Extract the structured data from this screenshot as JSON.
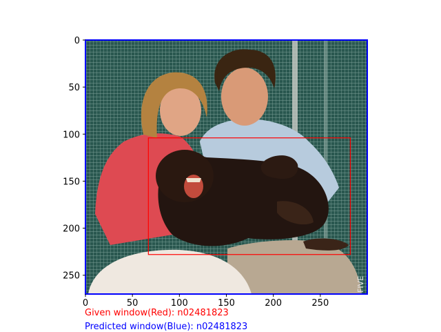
{
  "image_plot": {
    "xlim": [
      0,
      300
    ],
    "ylim": [
      0,
      270
    ],
    "x_ticks": [
      0,
      50,
      100,
      150,
      200,
      250
    ],
    "y_ticks": [
      0,
      50,
      100,
      150,
      200,
      250
    ],
    "y_axis_inverted": true,
    "photo_watermark": "FIVE"
  },
  "windows": {
    "given": {
      "color": "#ff0000",
      "x_range": [
        67,
        282
      ],
      "y_range": [
        104,
        228
      ]
    },
    "predicted": {
      "color": "#0000ff",
      "x_range": [
        0,
        300
      ],
      "y_range": [
        0,
        270
      ]
    }
  },
  "captions": {
    "given": "Given window(Red): n02481823",
    "predicted": "Predicted window(Blue): n02481823"
  },
  "colors": {
    "given_text": "#ff0000",
    "predicted_text": "#0000ff"
  }
}
